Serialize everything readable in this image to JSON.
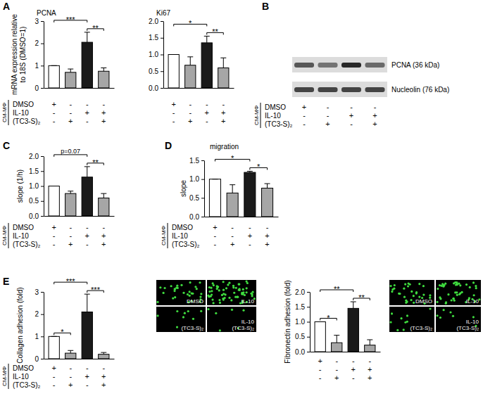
{
  "panels": [
    "A",
    "B",
    "C",
    "D",
    "E"
  ],
  "chart_data": [
    {
      "type": "bar",
      "title": "PCNA",
      "y_label": [
        "mRNA expression relative",
        "to 18S (DMSO=1)"
      ],
      "categories": [
        null,
        null,
        null,
        null
      ],
      "values": [
        1.0,
        0.7,
        2.05,
        0.75
      ],
      "errors": [
        0,
        0.15,
        0.45,
        0.15
      ],
      "colors": [
        "#ffffff",
        "#a6a6a6",
        "#1a1a1a",
        "#a6a6a6"
      ],
      "ylim": [
        0,
        3
      ],
      "yticks": [
        0,
        1,
        2,
        3
      ],
      "tick_labels": "y",
      "annotations": [
        {
          "text": "***",
          "from": 0,
          "to": 2
        },
        {
          "text": "**",
          "from": 2,
          "to": 3
        }
      ]
    },
    {
      "type": "bar",
      "title": "Ki67",
      "categories": [
        null,
        null,
        null,
        null
      ],
      "values": [
        1.0,
        0.68,
        1.35,
        0.6
      ],
      "errors": [
        0,
        0.25,
        0.2,
        0.3
      ],
      "colors": [
        "#ffffff",
        "#a6a6a6",
        "#1a1a1a",
        "#a6a6a6"
      ],
      "ylim": [
        0,
        2
      ],
      "yticks": [
        {
          "value": 0,
          "label": "0.0"
        },
        0.5,
        {
          "value": 1,
          "label": "1.0"
        },
        1.5,
        {
          "value": 2,
          "label": "2.0"
        }
      ],
      "tick_labels": "y",
      "annotations": [
        {
          "text": "*",
          "from": 0,
          "to": 2
        },
        {
          "text": "**",
          "from": 2,
          "to": 3
        }
      ]
    },
    {
      "type": "bar",
      "y_label": "slope (1/h)",
      "categories": [
        null,
        null,
        null,
        null
      ],
      "values": [
        1.0,
        0.75,
        1.3,
        0.6
      ],
      "errors": [
        0,
        0.08,
        0.35,
        0.15
      ],
      "colors": [
        "#ffffff",
        "#a6a6a6",
        "#1a1a1a",
        "#a6a6a6"
      ],
      "ylim": [
        0,
        2
      ],
      "yticks": [
        {
          "value": 0,
          "label": "0.0"
        },
        0.5,
        {
          "value": 1,
          "label": "1.0"
        },
        1.5,
        {
          "value": 2,
          "label": "2.0"
        }
      ],
      "tick_labels": "y",
      "annotations": [
        {
          "text": "p=0.07",
          "from": 0,
          "to": 2
        },
        {
          "text": "**",
          "from": 2,
          "to": 3
        }
      ]
    },
    {
      "type": "bar",
      "title": "migration",
      "y_label": "slope",
      "categories": [
        null,
        null,
        null,
        null
      ],
      "values": [
        1.0,
        0.63,
        1.18,
        0.76
      ],
      "errors": [
        0,
        0.22,
        0.03,
        0.12
      ],
      "colors": [
        "#ffffff",
        "#a6a6a6",
        "#1a1a1a",
        "#a6a6a6"
      ],
      "ylim": [
        0,
        1.5
      ],
      "yticks": [
        {
          "value": 0,
          "label": "0.0"
        },
        0.5,
        {
          "value": 1,
          "label": "1.0"
        },
        1.5
      ],
      "tick_labels": "y",
      "annotations": [
        {
          "text": "*",
          "from": 0,
          "to": 2
        },
        {
          "text": "*",
          "from": 2,
          "to": 3
        }
      ]
    },
    {
      "type": "bar",
      "y_label": "Collagen adhesion (fold)",
      "categories": [
        null,
        null,
        null,
        null
      ],
      "values": [
        1.0,
        0.25,
        2.1,
        0.2
      ],
      "errors": [
        0,
        0.12,
        0.8,
        0.08
      ],
      "colors": [
        "#ffffff",
        "#a6a6a6",
        "#1a1a1a",
        "#a6a6a6"
      ],
      "ylim": [
        0,
        3
      ],
      "yticks": [
        0,
        1,
        2,
        3
      ],
      "tick_labels": "y",
      "annotations": [
        {
          "text": "*",
          "from": 0,
          "to": 1
        },
        {
          "text": "***",
          "from": 0,
          "to": 2
        },
        {
          "text": "***",
          "from": 2,
          "to": 3
        }
      ]
    },
    {
      "type": "bar",
      "y_label": "Fibronectin adhesion (fold)",
      "categories": [
        null,
        null,
        null,
        null
      ],
      "values": [
        1.0,
        0.3,
        1.45,
        0.22
      ],
      "errors": [
        0,
        0.25,
        0.22,
        0.18
      ],
      "colors": [
        "#ffffff",
        "#a6a6a6",
        "#1a1a1a",
        "#a6a6a6"
      ],
      "ylim": [
        0,
        2
      ],
      "yticks": [
        {
          "value": 0,
          "label": "0.0"
        },
        0.5,
        {
          "value": 1,
          "label": "1.0"
        },
        1.5,
        {
          "value": 2,
          "label": "2.0"
        }
      ],
      "tick_labels": "y",
      "annotations": [
        {
          "text": "*",
          "from": 0,
          "to": 1
        },
        {
          "text": "**",
          "from": 0,
          "to": 2
        },
        {
          "text": "**",
          "from": 2,
          "to": 3
        }
      ]
    }
  ],
  "blot": {
    "bands": [
      "PCNA (36 kDa)",
      "Nucleolin (76 kDa)"
    ]
  },
  "micrographs": [
    {
      "labels": [
        [
          "DMSO"
        ],
        [
          "IL-10"
        ],
        [
          "(TC3-S)₂"
        ],
        [
          "IL-10",
          "(TC3-S)₂"
        ]
      ]
    },
    {
      "labels": [
        [
          "DMSO"
        ],
        [
          "IL-10"
        ],
        [
          "(TC3-S)₂"
        ],
        [
          "IL-10",
          "(TC3-S)₂"
        ]
      ]
    }
  ],
  "condition_tables": [
    {
      "group": "CM-MΦ",
      "labels": [
        "DMSO",
        "IL-10",
        "(TC3-S)₂"
      ],
      "sign_sets": [
        [
          [
            "+",
            "-",
            "-",
            "-"
          ],
          [
            "-",
            "-",
            "+",
            "+"
          ],
          [
            "-",
            "+",
            "-",
            "+"
          ]
        ],
        [
          [
            "+",
            "-",
            "-",
            "-"
          ],
          [
            "-",
            "-",
            "+",
            "+"
          ],
          [
            "-",
            "+",
            "-",
            "+"
          ]
        ]
      ]
    },
    {
      "group": "CM-MΦ",
      "labels": [
        "DMSO",
        "IL-10",
        "(TC3-S)₂"
      ],
      "sign_sets": [
        [
          [
            "+",
            "-",
            "-",
            "-"
          ],
          [
            "-",
            "-",
            "+",
            "+"
          ],
          [
            "-",
            "+",
            "-",
            "+"
          ]
        ]
      ]
    },
    {
      "group": "CM-MΦ",
      "labels": [
        "DMSO",
        "IL-10",
        "(TC3-S)₂"
      ],
      "sign_sets": [
        [
          [
            "+",
            "-",
            "-",
            "-"
          ],
          [
            "-",
            "-",
            "+",
            "+"
          ],
          [
            "-",
            "+",
            "-",
            "+"
          ]
        ]
      ]
    },
    {
      "group": "CM-MΦ",
      "labels": [
        "DMSO",
        "IL-10",
        "(TC3-S)₂"
      ],
      "sign_sets": [
        [
          [
            "+",
            "-",
            "-",
            "-"
          ],
          [
            "-",
            "-",
            "+",
            "+"
          ],
          [
            "-",
            "+",
            "-",
            "+"
          ]
        ]
      ]
    },
    {
      "group": "CM-MΦ",
      "labels": [
        "DMSO",
        "IL-10",
        "(TC3-S)₂"
      ],
      "sign_sets": [
        [
          [
            "+",
            "-",
            "-",
            "-"
          ],
          [
            "-",
            "-",
            "+",
            "+"
          ],
          [
            "-",
            "+",
            "-",
            "+"
          ]
        ]
      ]
    },
    {
      "sign_sets": [
        [
          [
            "+",
            "-",
            "-",
            "-"
          ],
          [
            "-",
            "-",
            "+",
            "+"
          ],
          [
            "-",
            "+",
            "-",
            "+"
          ]
        ]
      ]
    }
  ]
}
